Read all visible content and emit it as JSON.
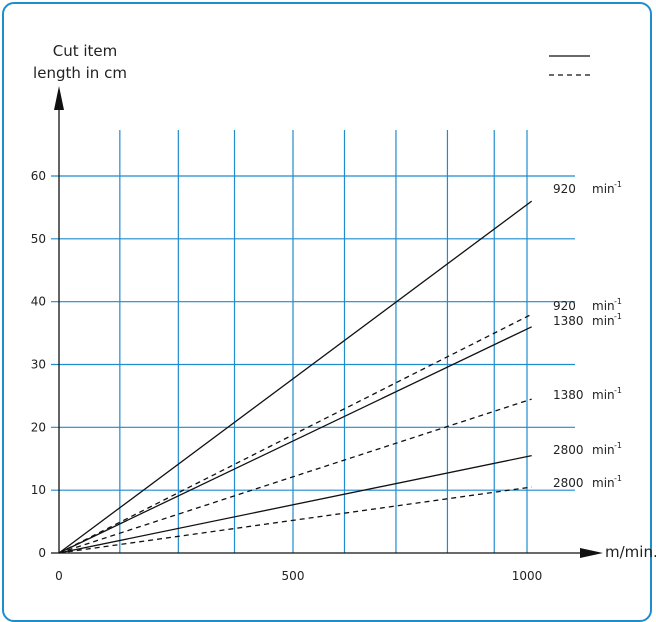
{
  "chart_data": {
    "type": "line",
    "ylabel_lines": [
      "Cut item",
      "length in cm"
    ],
    "xlabel": "m/min.",
    "xlim": [
      0,
      1000
    ],
    "ylim": [
      0,
      60
    ],
    "x_ticks": [
      0,
      500,
      1000
    ],
    "y_ticks": [
      0,
      10,
      20,
      30,
      40,
      50,
      60
    ],
    "grid": true,
    "grid_x_values": [
      130,
      255,
      375,
      500,
      610,
      720,
      830,
      930,
      1000
    ],
    "legend": {
      "placement": "top-right",
      "entries": [
        {
          "style": "solid"
        },
        {
          "style": "dashed"
        }
      ]
    },
    "unit_suffix": "min",
    "unit_exponent": "-1",
    "series": [
      {
        "label": "920",
        "style": "solid",
        "x": [
          0,
          1010
        ],
        "y": [
          0,
          56
        ]
      },
      {
        "label": "920",
        "style": "dashed",
        "x": [
          0,
          1010
        ],
        "y": [
          0,
          38
        ]
      },
      {
        "label": "1380",
        "style": "solid",
        "x": [
          0,
          1010
        ],
        "y": [
          0,
          36
        ]
      },
      {
        "label": "1380",
        "style": "dashed",
        "x": [
          0,
          1010
        ],
        "y": [
          0,
          24.5
        ]
      },
      {
        "label": "2800",
        "style": "solid",
        "x": [
          0,
          1010
        ],
        "y": [
          0,
          15.5
        ]
      },
      {
        "label": "2800",
        "style": "dashed",
        "x": [
          0,
          1010
        ],
        "y": [
          0,
          10.5
        ]
      }
    ]
  },
  "colors": {
    "grid": "#1e8ccd",
    "frame": "#1e8ccd",
    "lines": "#111111"
  }
}
